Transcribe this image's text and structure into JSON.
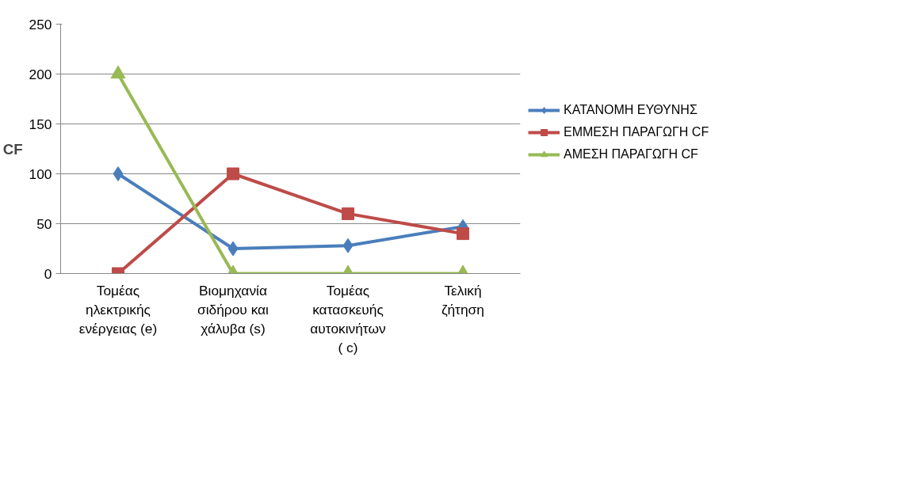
{
  "chart_data": {
    "type": "line",
    "ylabel": "CF",
    "categories": [
      "Τομέας\nηλεκτρικής\nενέργειας (e)",
      "Βιομηχανία\nσιδήρου και\nχάλυβα (s)",
      "Τομέας\nκατασκευής\nαυτοκινήτων\n( c)",
      "Τελική\nζήτηση"
    ],
    "series": [
      {
        "name": "ΚΑΤΑΝΟΜΗ ΕΥΘΥΝΗΣ",
        "color": "#4a7ebb",
        "marker": "diamond",
        "values": [
          100,
          25,
          28,
          47
        ]
      },
      {
        "name": "ΕΜΜΕΣΗ ΠΑΡΑΓΩΓΗ CF",
        "color": "#be4b48",
        "marker": "square",
        "values": [
          0,
          100,
          60,
          40
        ]
      },
      {
        "name": "ΑΜΕΣΗ ΠΑΡΑΓΩΓΗ CF",
        "color": "#98b954",
        "marker": "triangle",
        "values": [
          200,
          0,
          0,
          0
        ]
      }
    ],
    "ylim": [
      0,
      250
    ],
    "yticks": [
      0,
      50,
      100,
      150,
      200,
      250
    ],
    "grid": "y",
    "legend": "right"
  }
}
